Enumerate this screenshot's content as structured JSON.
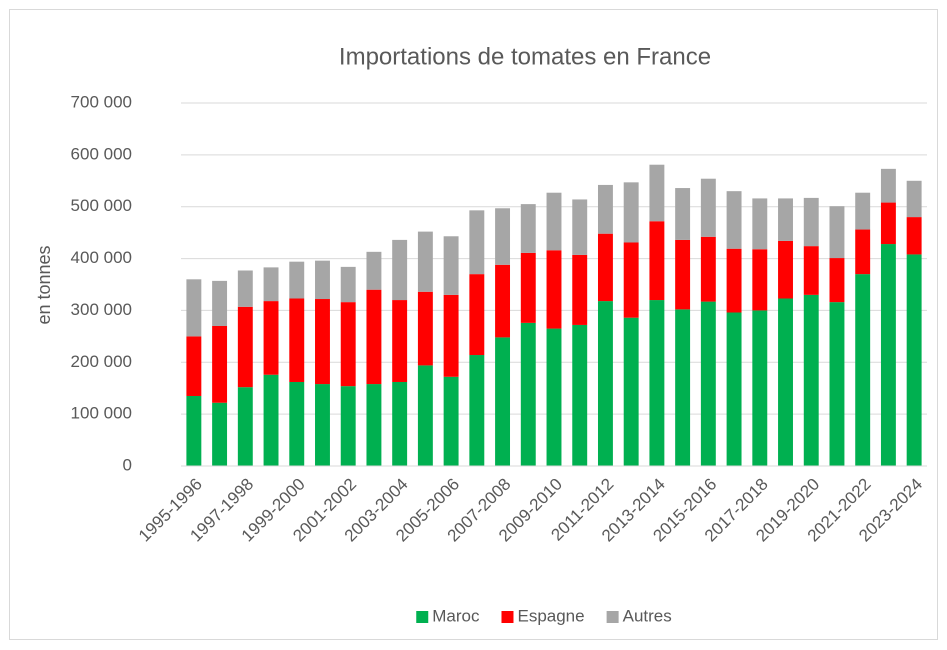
{
  "chart_data": {
    "type": "stacked_bar",
    "title": "Importations de tomates en France",
    "y_label": "en tonnes",
    "categories": [
      "1995-1996",
      null,
      "1997-1998",
      null,
      "1999-2000",
      null,
      "2001-2002",
      null,
      "2003-2004",
      null,
      "2005-2006",
      null,
      "2007-2008",
      null,
      "2009-2010",
      null,
      "2011-2012",
      null,
      "2013-2014",
      null,
      "2015-2016",
      null,
      "2017-2018",
      null,
      "2019-2020",
      null,
      "2021-2022",
      null,
      "2023-2024"
    ],
    "series": [
      {
        "name": "Maroc",
        "color": "#00b050",
        "values": [
          135000,
          122000,
          152000,
          176000,
          162000,
          158000,
          154000,
          158000,
          162000,
          194000,
          172000,
          214000,
          248000,
          276000,
          265000,
          272000,
          318000,
          286000,
          320000,
          302000,
          317000,
          296000,
          300000,
          323000,
          330000,
          316000,
          370000,
          428000,
          408000
        ]
      },
      {
        "name": "Espagne",
        "color": "#ff0000",
        "values": [
          115000,
          148000,
          155000,
          142000,
          161000,
          164000,
          162000,
          182000,
          158000,
          142000,
          158000,
          156000,
          140000,
          135000,
          151000,
          135000,
          130000,
          145000,
          152000,
          134000,
          125000,
          123000,
          118000,
          111000,
          94000,
          85000,
          86000,
          80000,
          72000
        ]
      },
      {
        "name": "Autres",
        "color": "#a6a6a6",
        "values": [
          110000,
          87000,
          70000,
          65000,
          71000,
          74000,
          68000,
          73000,
          116000,
          116000,
          113000,
          123000,
          109000,
          94000,
          111000,
          107000,
          94000,
          116000,
          109000,
          100000,
          112000,
          111000,
          98000,
          82000,
          93000,
          100000,
          71000,
          65000,
          70000
        ]
      }
    ],
    "ylim": [
      0,
      700000
    ],
    "yticks": [
      0,
      {
        "value": 100000,
        "label": "100 000"
      },
      {
        "value": 200000,
        "label": "200 000"
      },
      {
        "value": 300000,
        "label": "300 000"
      },
      {
        "value": 400000,
        "label": "400 000"
      },
      {
        "value": 500000,
        "label": "500 000"
      },
      {
        "value": 600000,
        "label": "600 000"
      },
      {
        "value": 700000,
        "label": "700 000"
      }
    ],
    "grid": true,
    "legend": "bottom"
  }
}
